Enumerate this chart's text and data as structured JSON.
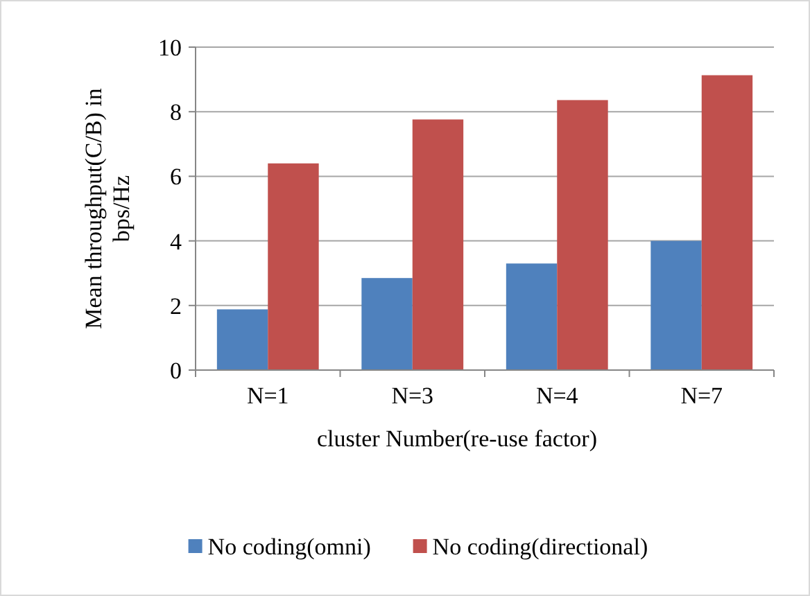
{
  "chart_data": {
    "type": "bar",
    "xlabel": "cluster Number(re-use factor)",
    "ylabel": "Mean throughput(C/B) in bps/Hz",
    "categories": [
      "N=1",
      "N=3",
      "N=4",
      "N=7"
    ],
    "series": [
      {
        "name": "No coding(omni)",
        "color": "#4f81bd",
        "values": [
          1.88,
          2.85,
          3.3,
          4.0
        ]
      },
      {
        "name": "No coding(directional)",
        "color": "#c0504d",
        "values": [
          6.4,
          7.76,
          8.36,
          9.13
        ]
      }
    ],
    "ylim": [
      0,
      10
    ],
    "yticks": [
      0,
      2,
      4,
      6,
      8,
      10
    ],
    "grid": "y",
    "legend": "bottom"
  }
}
